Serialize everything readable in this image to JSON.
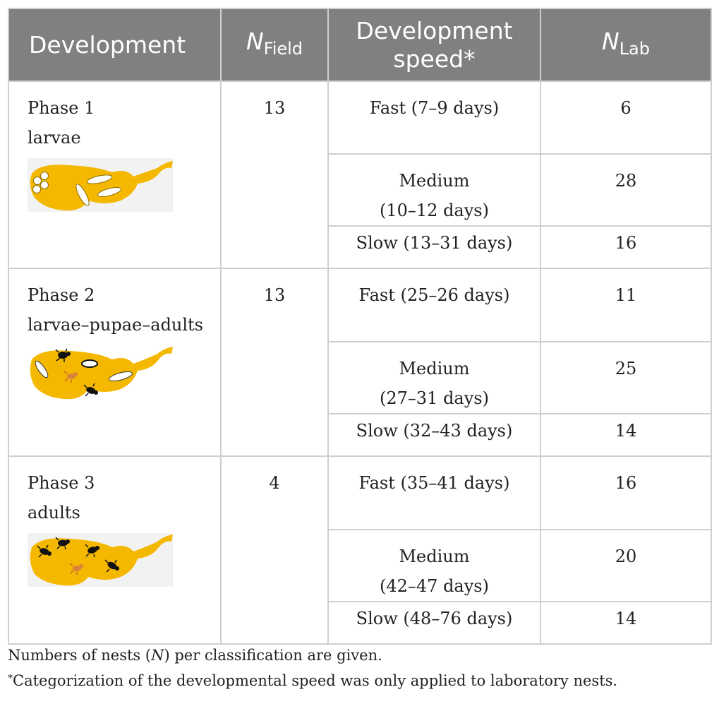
{
  "header": {
    "development": "Development",
    "n_field_symbol": "N",
    "n_field_sub": "Field",
    "development_speed": "Development speed*",
    "n_lab_symbol": "N",
    "n_lab_sub": "Lab"
  },
  "groups": [
    {
      "phase": "Phase 1",
      "stage": "larvae",
      "n_field": "13",
      "rows": [
        {
          "speed": "Fast (7–9 days)",
          "n_lab": "6"
        },
        {
          "speed_line1": "Medium",
          "speed_line2": "(10–12 days)",
          "n_lab": "28"
        },
        {
          "speed": "Slow (13–31 days)",
          "n_lab": "16"
        }
      ]
    },
    {
      "phase": "Phase 2",
      "stage": "larvae–pupae–adults",
      "n_field": "13",
      "rows": [
        {
          "speed": "Fast (25–26 days)",
          "n_lab": "11"
        },
        {
          "speed_line1": "Medium",
          "speed_line2": "(27–31 days)",
          "n_lab": "25"
        },
        {
          "speed": "Slow (32–43 days)",
          "n_lab": "14"
        }
      ]
    },
    {
      "phase": "Phase 3",
      "stage": "adults",
      "n_field": "4",
      "rows": [
        {
          "speed": "Fast (35–41 days)",
          "n_lab": "16"
        },
        {
          "speed_line1": "Medium",
          "speed_line2": "(42–47 days)",
          "n_lab": "20"
        },
        {
          "speed": "Slow (48–76 days)",
          "n_lab": "14"
        }
      ]
    }
  ],
  "notes": {
    "line1_before": "Numbers of nests (",
    "line1_n": "N",
    "line1_after": ") per classification are given.",
    "line2_marker": "*",
    "line2_text": "Categorization of the developmental speed was only applied to laboratory nests."
  },
  "colors": {
    "header_bg": "#808080",
    "nest_yellow": "#F5B800",
    "grid_line": "#CFCFCF"
  },
  "icons": [
    "nest-larvae-icon",
    "nest-larvae-pupae-adults-icon",
    "nest-adults-icon"
  ]
}
